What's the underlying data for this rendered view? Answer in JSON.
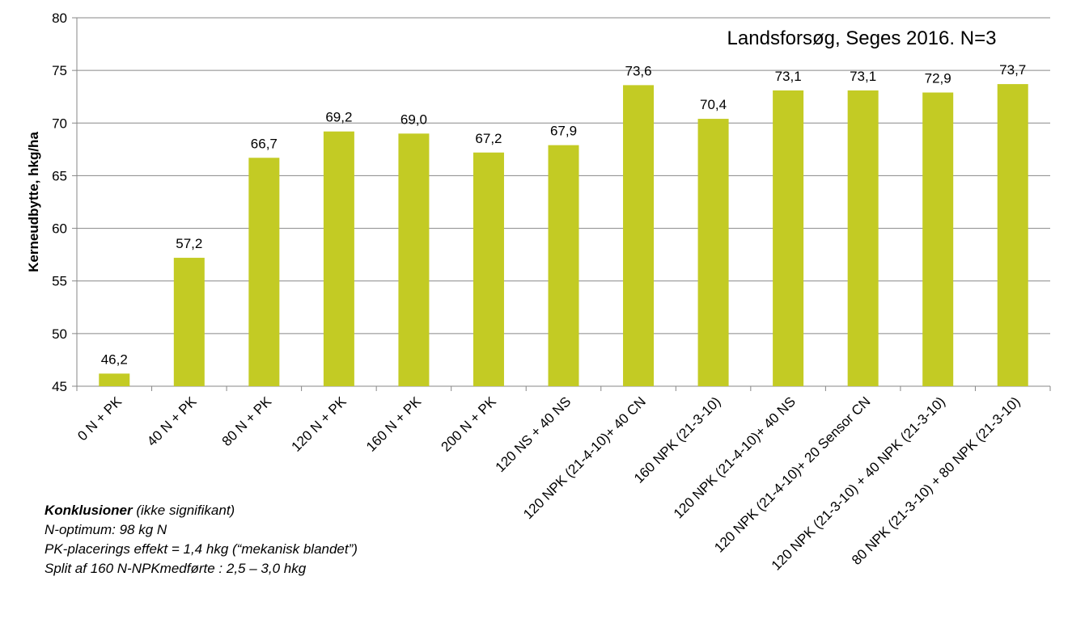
{
  "chart_data": {
    "type": "bar",
    "title": "Landsforsøg, Seges 2016. N=3",
    "y_label": "Kerneudbytte, hkg/ha",
    "categories": [
      "0 N + PK",
      "40 N + PK",
      "80 N + PK",
      "120 N + PK",
      "160 N + PK",
      "200 N + PK",
      "120  NS + 40 NS",
      "120 NPK (21-4-10)+ 40 CN",
      "160 NPK (21-3-10)",
      "120 NPK (21-4-10)+ 40 NS",
      "120 NPK (21-4-10)+ 20 Sensor CN",
      "120 NPK (21-3-10) + 40 NPK (21-3-10)",
      "80 NPK (21-3-10) + 80 NPK (21-3-10)"
    ],
    "values": [
      46.2,
      57.2,
      66.7,
      69.2,
      69.0,
      67.2,
      67.9,
      73.6,
      70.4,
      73.1,
      73.1,
      72.9,
      73.7
    ],
    "value_labels": [
      "46,2",
      "57,2",
      "66,7",
      "69,2",
      "69,0",
      "67,2",
      "67,9",
      "73,6",
      "70,4",
      "73,1",
      "73,1",
      "72,9",
      "73,7"
    ],
    "color": "#c3cb24",
    "ylim": [
      45,
      80
    ],
    "yticks": [
      45,
      50,
      55,
      60,
      65,
      70,
      75,
      80
    ],
    "grid": true,
    "notes": {
      "heading": "Konklusioner",
      "heading_note": " (ikke signifikant)",
      "lines": [
        "N-optimum: 98 kg N",
        "PK-placerings effekt = 1,4 hkg (“mekanisk blandet”)",
        "Split af 160 N-NPKmedførte : 2,5 – 3,0 hkg"
      ]
    }
  }
}
